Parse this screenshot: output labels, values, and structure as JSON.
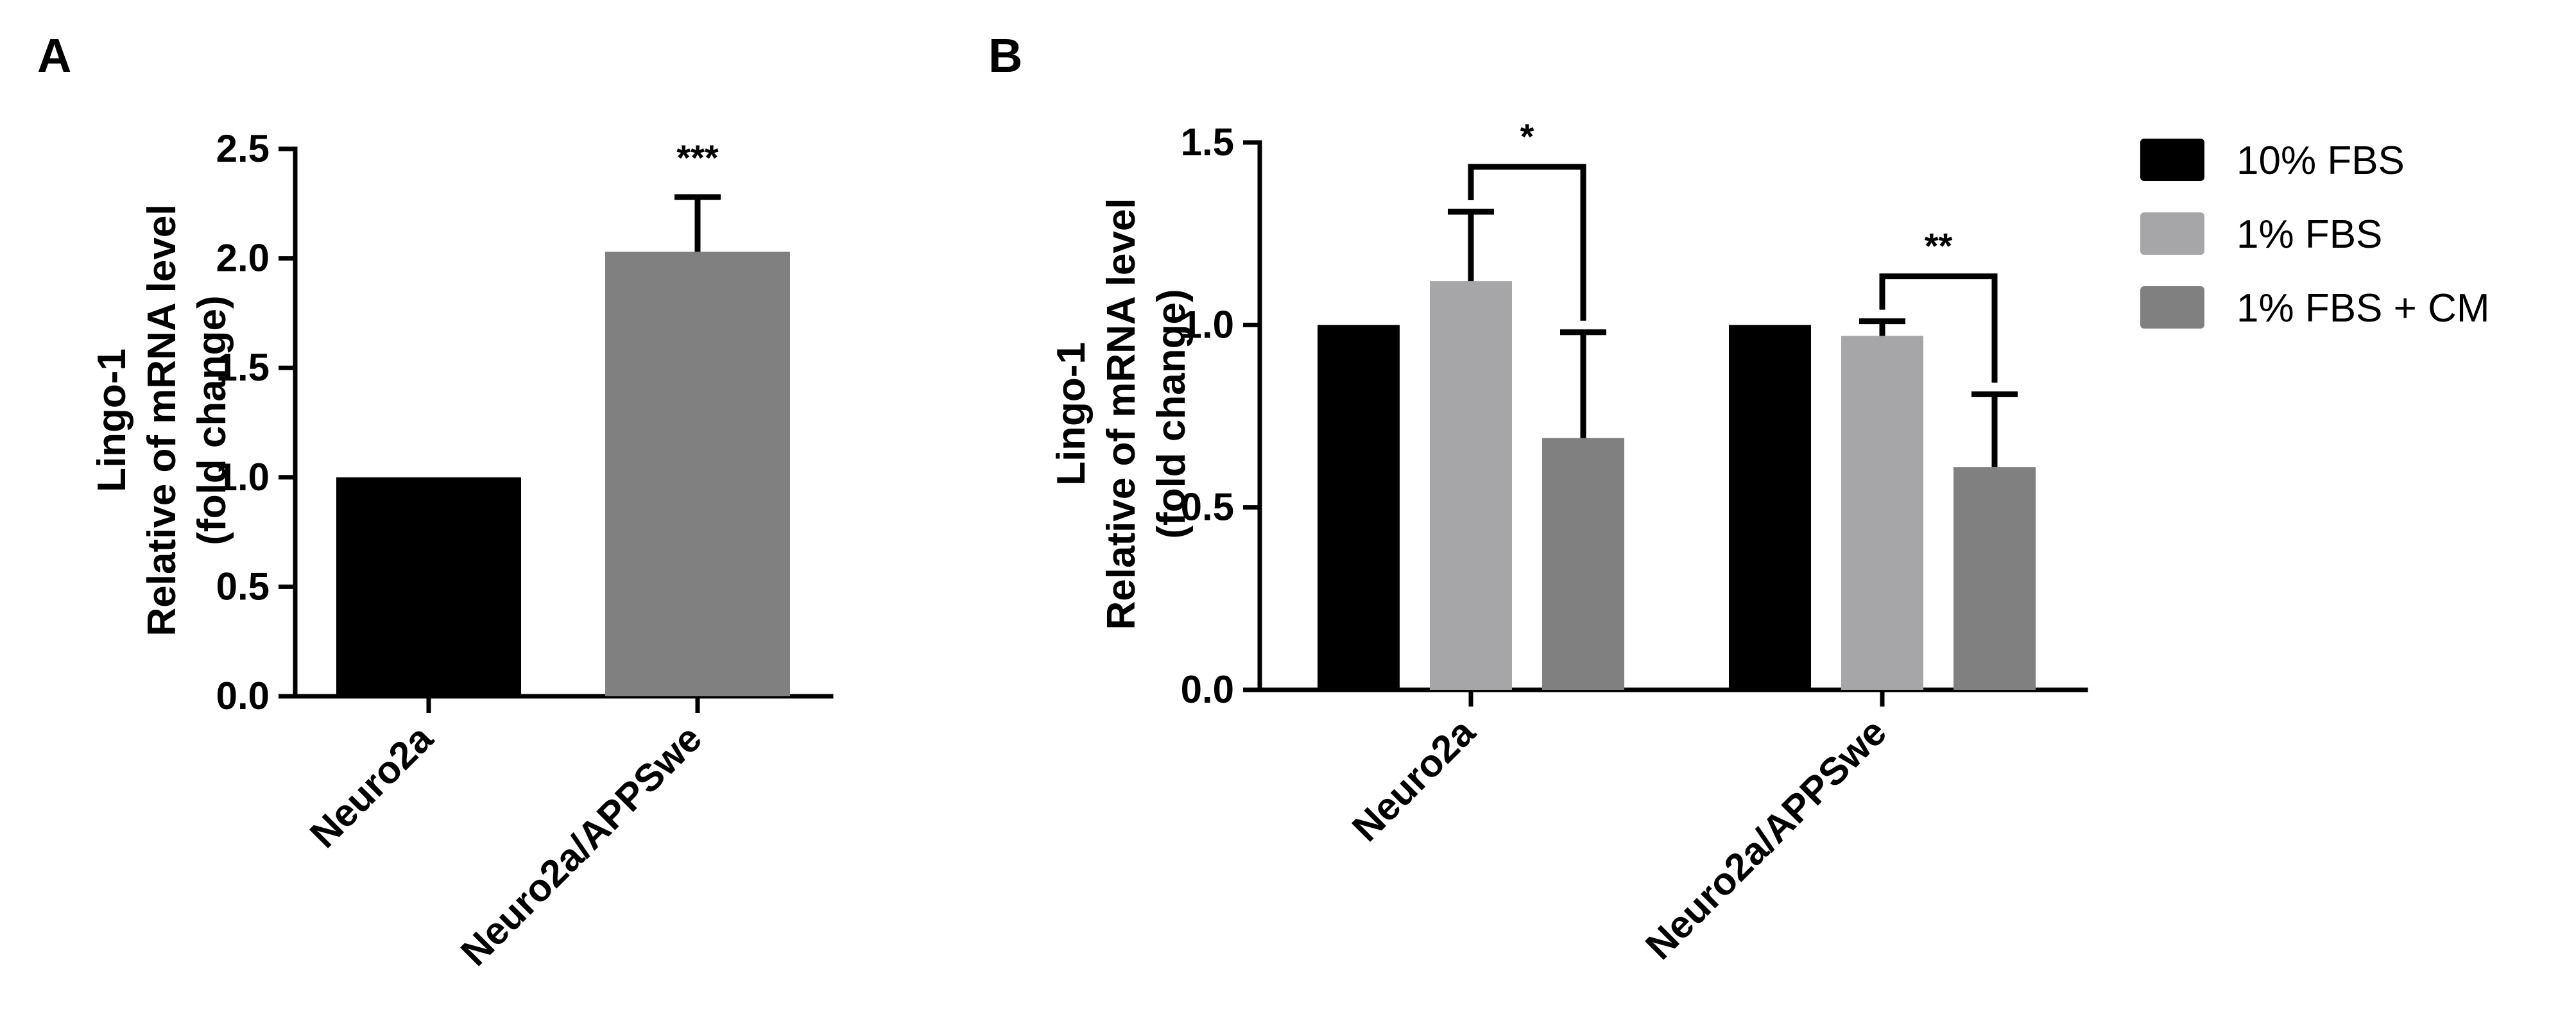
{
  "chart_data": [
    {
      "panel": "A",
      "type": "bar",
      "ylabel": [
        "Lingo-1",
        "Relative of mRNA level",
        "(fold change)"
      ],
      "ylim": [
        0,
        2.5
      ],
      "yticks": [
        "0.0",
        "0.5",
        "1.0",
        "1.5",
        "2.0",
        "2.5"
      ],
      "categories": [
        "Neuro2a",
        "Neuro2a/APPSwe"
      ],
      "values": [
        1.0,
        2.03
      ],
      "errors": [
        0,
        0.25
      ],
      "bar_colors": [
        "#000000",
        "#808080"
      ],
      "annotations": [
        {
          "category": 1,
          "text": "***"
        }
      ]
    },
    {
      "panel": "B",
      "type": "bar",
      "ylabel": [
        "Lingo-1",
        "Relative of mRNA level",
        "(fold change)"
      ],
      "ylim": [
        0,
        1.5
      ],
      "yticks": [
        "0.0",
        "0.5",
        "1.0",
        "1.5"
      ],
      "categories": [
        "Neuro2a",
        "Neuro2a/APPSwe"
      ],
      "series": [
        {
          "name": "10% FBS",
          "color": "#000000",
          "values": [
            1.0,
            1.0
          ],
          "errors": [
            0,
            0
          ]
        },
        {
          "name": "1% FBS",
          "color": "#a6a6a8",
          "values": [
            1.12,
            0.97
          ],
          "errors": [
            0.19,
            0.04
          ]
        },
        {
          "name": "1% FBS + CM",
          "color": "#808080",
          "values": [
            0.69,
            0.61
          ],
          "errors": [
            0.29,
            0.2
          ]
        }
      ],
      "comparisons": [
        {
          "category": 0,
          "from_series": 1,
          "to_series": 2,
          "text": "*"
        },
        {
          "category": 1,
          "from_series": 1,
          "to_series": 2,
          "text": "**"
        }
      ],
      "legend_position": "top-right"
    }
  ]
}
